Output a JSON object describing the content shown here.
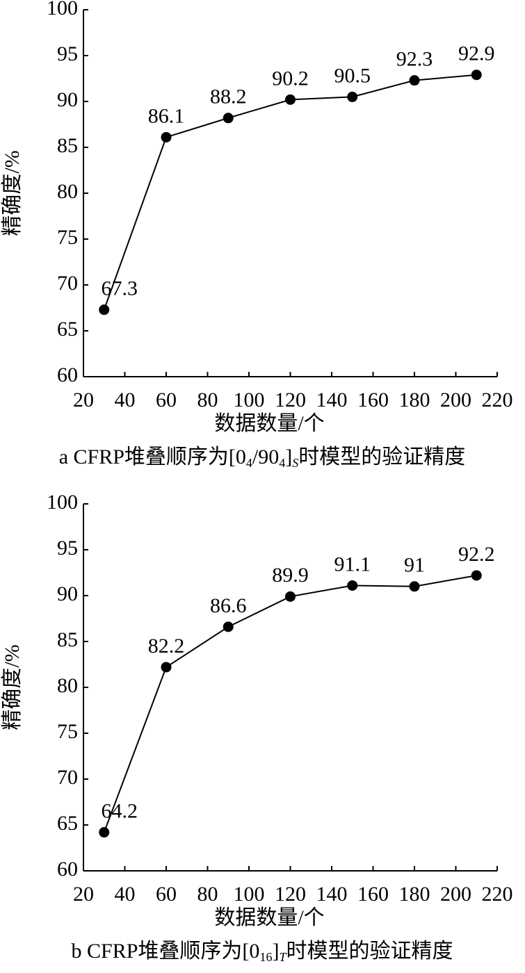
{
  "chart_data": [
    {
      "type": "line",
      "x": [
        30,
        60,
        90,
        120,
        150,
        180,
        210
      ],
      "values": [
        67.3,
        86.1,
        88.2,
        90.2,
        90.5,
        92.3,
        92.9
      ],
      "color": "#000000",
      "xlabel": "数据数量/个",
      "ylabel": "精确度/%",
      "xlim": [
        20,
        220
      ],
      "xticks": [
        20,
        40,
        60,
        80,
        100,
        120,
        140,
        160,
        180,
        200,
        220
      ],
      "ylim": [
        60,
        100
      ],
      "yticks": [
        60,
        65,
        70,
        75,
        80,
        85,
        90,
        95,
        100
      ],
      "caption": [
        "a CFRP堆叠顺序为[0",
        "4",
        "/90",
        "4",
        "]",
        "S",
        "时模型的验证精度"
      ]
    },
    {
      "type": "line",
      "x": [
        30,
        60,
        90,
        120,
        150,
        180,
        210
      ],
      "values": [
        64.2,
        82.2,
        86.6,
        89.9,
        91.1,
        91,
        92.2
      ],
      "color": "#000000",
      "xlabel": "数据数量/个",
      "ylabel": "精确度/%",
      "xlim": [
        20,
        220
      ],
      "xticks": [
        20,
        40,
        60,
        80,
        100,
        120,
        140,
        160,
        180,
        200,
        220
      ],
      "ylim": [
        60,
        100
      ],
      "yticks": [
        60,
        65,
        70,
        75,
        80,
        85,
        90,
        95,
        100
      ],
      "caption": [
        "b CFRP堆叠顺序为[0",
        "16",
        "]",
        "T",
        "时模型的验证精度"
      ]
    }
  ]
}
